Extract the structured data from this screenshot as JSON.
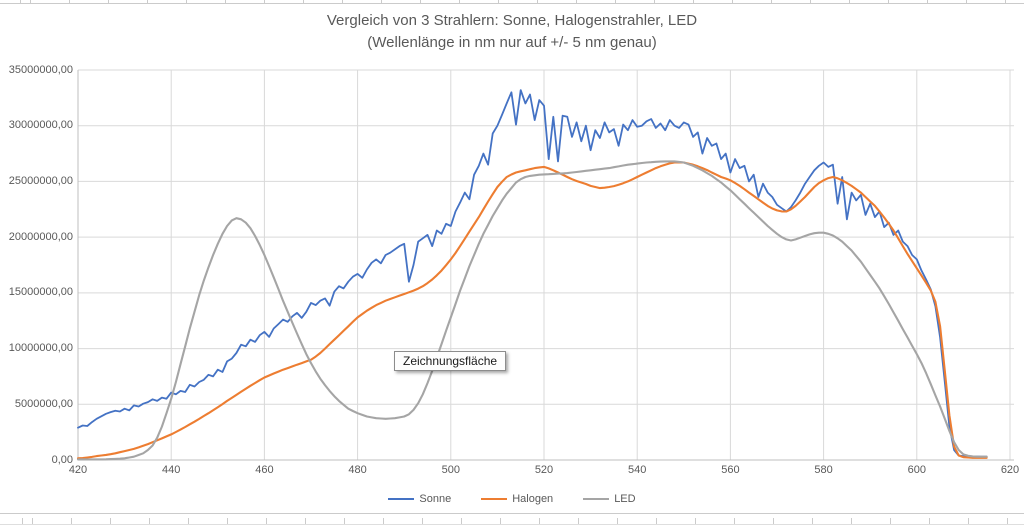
{
  "tooltip": {
    "text": "Zeichnungsfläche"
  },
  "chart_data": {
    "type": "line",
    "title": "Vergleich von 3 Strahlern: Sonne, Halogenstrahler, LED",
    "subtitle": "(Wellenlänge in nm nur auf +/- 5 nm genau)",
    "grid": true,
    "legend_position": "bottom",
    "x_start": 420,
    "x_step": 1,
    "x_ticks": [
      420,
      440,
      460,
      480,
      500,
      520,
      540,
      560,
      580,
      600,
      620
    ],
    "xlim": [
      420,
      620
    ],
    "ylim": [
      0,
      35000000
    ],
    "y_max": 35000000,
    "y_unit_scale": 1000000,
    "y_ticks": [
      {
        "value": 35000000,
        "label": "35000000,00"
      },
      {
        "value": 30000000,
        "label": "30000000,00"
      },
      {
        "value": 25000000,
        "label": "25000000,00"
      },
      {
        "value": 20000000,
        "label": "20000000,00"
      },
      {
        "value": 15000000,
        "label": "15000000,00"
      },
      {
        "value": 10000000,
        "label": "10000000,00"
      },
      {
        "value": 5000000,
        "label": "5000000,00"
      },
      {
        "value": 0,
        "label": "0,00"
      }
    ],
    "series": [
      {
        "name": "Sonne",
        "color": "#4472C4",
        "stroke_width": 1.8,
        "values_millions": [
          2.9,
          3.1,
          3.05,
          3.4,
          3.7,
          3.92,
          4.15,
          4.3,
          4.42,
          4.35,
          4.6,
          4.45,
          4.9,
          4.8,
          5.05,
          5.2,
          5.45,
          5.3,
          5.6,
          5.5,
          6.05,
          5.9,
          6.2,
          6.1,
          6.75,
          6.6,
          7.0,
          7.2,
          7.65,
          7.5,
          8.1,
          7.9,
          8.85,
          9.1,
          9.6,
          10.35,
          10.2,
          10.8,
          10.6,
          11.2,
          11.5,
          11.05,
          11.8,
          12.2,
          12.6,
          12.4,
          12.9,
          13.2,
          12.75,
          13.3,
          14.1,
          13.9,
          14.3,
          14.5,
          13.85,
          15.1,
          15.6,
          15.4,
          16.0,
          16.45,
          16.7,
          16.35,
          17.1,
          17.7,
          18.0,
          17.65,
          18.4,
          18.6,
          18.9,
          19.2,
          19.4,
          16.0,
          17.5,
          19.6,
          19.9,
          20.2,
          19.2,
          20.6,
          20.3,
          21.2,
          21.0,
          22.3,
          23.1,
          24.0,
          23.4,
          25.6,
          26.4,
          27.5,
          26.5,
          29.3,
          30.0,
          31.0,
          32.0,
          33.0,
          30.1,
          33.2,
          32.0,
          32.8,
          30.5,
          32.3,
          31.8,
          27.0,
          30.8,
          26.8,
          30.9,
          30.8,
          29.0,
          30.3,
          28.6,
          30.0,
          27.8,
          29.6,
          28.9,
          30.3,
          29.4,
          29.7,
          28.2,
          30.1,
          29.6,
          30.5,
          29.9,
          30.0,
          30.4,
          30.6,
          29.8,
          30.2,
          29.6,
          30.5,
          30.0,
          29.8,
          30.3,
          30.1,
          29.0,
          29.4,
          27.5,
          28.9,
          28.2,
          28.4,
          27.0,
          27.5,
          25.8,
          27.0,
          26.2,
          26.4,
          25.0,
          25.6,
          23.6,
          24.8,
          24.0,
          23.6,
          22.9,
          22.6,
          22.3,
          22.7,
          23.3,
          24.0,
          24.8,
          25.4,
          26.0,
          26.4,
          26.7,
          26.3,
          26.5,
          23.0,
          25.4,
          21.6,
          24.0,
          23.3,
          23.8,
          22.0,
          23.0,
          21.8,
          22.3,
          20.9,
          21.3,
          20.2,
          20.6,
          19.6,
          19.2,
          18.4,
          18.0,
          17.0,
          16.2,
          15.3,
          13.8,
          11.0,
          7.0,
          3.0,
          0.9,
          0.4,
          0.35,
          0.33,
          0.32,
          0.31,
          0.3,
          0.3
        ]
      },
      {
        "name": "Halogen",
        "color": "#ED7D31",
        "stroke_width": 2.1,
        "values_millions": [
          0.15,
          0.18,
          0.22,
          0.28,
          0.35,
          0.4,
          0.46,
          0.52,
          0.6,
          0.7,
          0.8,
          0.9,
          1.0,
          1.13,
          1.27,
          1.43,
          1.6,
          1.77,
          1.94,
          2.12,
          2.3,
          2.51,
          2.73,
          2.96,
          3.2,
          3.44,
          3.69,
          3.95,
          4.2,
          4.47,
          4.74,
          5.02,
          5.3,
          5.57,
          5.84,
          6.12,
          6.4,
          6.66,
          6.91,
          7.16,
          7.4,
          7.58,
          7.76,
          7.93,
          8.1,
          8.25,
          8.4,
          8.55,
          8.7,
          8.85,
          9.0,
          9.28,
          9.6,
          10.0,
          10.4,
          10.8,
          11.2,
          11.6,
          12.0,
          12.4,
          12.8,
          13.1,
          13.4,
          13.66,
          13.9,
          14.1,
          14.3,
          14.45,
          14.6,
          14.75,
          14.9,
          15.05,
          15.2,
          15.38,
          15.6,
          15.88,
          16.2,
          16.58,
          17.0,
          17.48,
          18.0,
          18.58,
          19.2,
          19.85,
          20.5,
          21.15,
          21.8,
          22.5,
          23.2,
          23.85,
          24.5,
          24.98,
          25.4,
          25.62,
          25.8,
          25.91,
          26.0,
          26.1,
          26.2,
          26.26,
          26.3,
          26.17,
          26.0,
          25.8,
          25.6,
          25.4,
          25.2,
          25.04,
          24.9,
          24.77,
          24.6,
          24.5,
          24.4,
          24.44,
          24.5,
          24.58,
          24.7,
          24.84,
          25.0,
          25.19,
          25.4,
          25.6,
          25.8,
          26.0,
          26.2,
          26.36,
          26.5,
          26.62,
          26.7,
          26.72,
          26.7,
          26.6,
          26.5,
          26.36,
          26.2,
          26.02,
          25.8,
          25.6,
          25.4,
          25.26,
          25.1,
          24.86,
          24.6,
          24.3,
          24.0,
          23.7,
          23.4,
          23.1,
          22.8,
          22.57,
          22.4,
          22.31,
          22.3,
          22.5,
          22.8,
          23.2,
          23.6,
          24.05,
          24.5,
          24.85,
          25.1,
          25.3,
          25.4,
          25.28,
          25.1,
          24.86,
          24.6,
          24.3,
          24.0,
          23.6,
          23.2,
          22.8,
          22.3,
          21.76,
          21.2,
          20.6,
          19.9,
          19.2,
          18.5,
          17.85,
          17.2,
          16.55,
          15.9,
          15.2,
          14.2,
          12.0,
          8.0,
          4.0,
          1.2,
          0.4,
          0.25,
          0.22,
          0.2,
          0.2,
          0.2,
          0.2
        ]
      },
      {
        "name": "LED",
        "color": "#A5A5A5",
        "stroke_width": 2.1,
        "values_millions": [
          0.05,
          0.05,
          0.05,
          0.05,
          0.05,
          0.05,
          0.06,
          0.08,
          0.1,
          0.12,
          0.15,
          0.22,
          0.3,
          0.45,
          0.6,
          0.9,
          1.3,
          2.0,
          3.0,
          4.2,
          5.5,
          7.0,
          8.6,
          10.2,
          11.8,
          13.3,
          14.8,
          16.1,
          17.3,
          18.4,
          19.4,
          20.3,
          21.0,
          21.5,
          21.7,
          21.6,
          21.3,
          20.8,
          20.1,
          19.3,
          18.4,
          17.4,
          16.4,
          15.35,
          14.3,
          13.3,
          12.3,
          11.35,
          10.4,
          9.5,
          8.7,
          7.95,
          7.3,
          6.72,
          6.2,
          5.73,
          5.3,
          4.95,
          4.6,
          4.4,
          4.2,
          4.05,
          3.9,
          3.82,
          3.75,
          3.72,
          3.7,
          3.72,
          3.75,
          3.82,
          3.9,
          4.1,
          4.5,
          5.1,
          5.9,
          6.9,
          8.0,
          9.2,
          10.4,
          11.6,
          12.8,
          14.0,
          15.2,
          16.3,
          17.4,
          18.4,
          19.4,
          20.3,
          21.1,
          21.9,
          22.6,
          23.3,
          23.9,
          24.4,
          24.9,
          25.2,
          25.4,
          25.5,
          25.55,
          25.6,
          25.63,
          25.65,
          25.68,
          25.7,
          25.72,
          25.75,
          25.8,
          25.85,
          25.9,
          25.95,
          26.0,
          26.05,
          26.1,
          26.15,
          26.2,
          26.28,
          26.35,
          26.43,
          26.5,
          26.55,
          26.6,
          26.65,
          26.7,
          26.73,
          26.76,
          26.78,
          26.8,
          26.8,
          26.8,
          26.75,
          26.7,
          26.55,
          26.4,
          26.2,
          26.0,
          25.75,
          25.5,
          25.2,
          24.9,
          24.55,
          24.2,
          23.8,
          23.4,
          23.0,
          22.6,
          22.2,
          21.8,
          21.4,
          21.0,
          20.65,
          20.3,
          20.0,
          19.8,
          19.7,
          19.8,
          19.95,
          20.1,
          20.25,
          20.35,
          20.4,
          20.4,
          20.3,
          20.15,
          19.9,
          19.6,
          19.2,
          18.8,
          18.3,
          17.8,
          17.2,
          16.6,
          16.0,
          15.4,
          14.7,
          14.0,
          13.25,
          12.5,
          11.75,
          11.0,
          10.25,
          9.5,
          8.7,
          7.8,
          6.8,
          5.8,
          4.8,
          3.7,
          2.6,
          1.6,
          0.9,
          0.5,
          0.38,
          0.32,
          0.3,
          0.3,
          0.3
        ]
      }
    ]
  }
}
